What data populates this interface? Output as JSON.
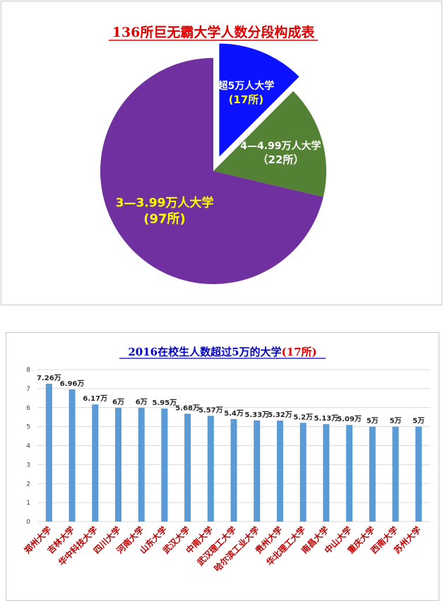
{
  "pie_chart": {
    "title": "136所巨无霸大学人数分段构成表",
    "title_color": "#e00000",
    "slices": [
      {
        "label": "超5万人大学",
        "count_label": "(17所)",
        "value": 17,
        "color": "#0a12ff",
        "label_color": "#ffffff",
        "count_color": "#ffff00",
        "exploded": true
      },
      {
        "label": "4—4.99万人大学",
        "count_label": "（22所）",
        "value": 22,
        "color": "#548235",
        "label_color": "#ffffff",
        "count_color": "#ffffff",
        "exploded": false
      },
      {
        "label": "3—3.99万人大学",
        "count_label": "(97所)",
        "value": 97,
        "color": "#7030a0",
        "label_color": "#ffff00",
        "count_color": "#ffff00",
        "exploded": false
      }
    ]
  },
  "chart_data": [
    {
      "type": "pie",
      "title": "136所巨无霸大学人数分段构成表",
      "categories": [
        "超5万人大学",
        "4—4.99万人大学",
        "3—3.99万人大学"
      ],
      "values": [
        17,
        22,
        97
      ]
    },
    {
      "type": "bar",
      "title": "2016在校生人数超过5万的大学(17所)",
      "categories": [
        "郑州大学",
        "吉林大学",
        "华中科技大学",
        "四川大学",
        "河南大学",
        "山东大学",
        "武汉大学",
        "中南大学",
        "武汉理工大学",
        "哈尔滨工业大学",
        "贵州大学",
        "华北理工大学",
        "南昌大学",
        "中山大学",
        "重庆大学",
        "西南大学",
        "苏州大学"
      ],
      "values": [
        7.26,
        6.96,
        6.17,
        6,
        6,
        5.95,
        5.68,
        5.57,
        5.4,
        5.33,
        5.32,
        5.2,
        5.13,
        5.09,
        5,
        5,
        5
      ],
      "data_labels": [
        "7.26万",
        "6.96万",
        "6.17万",
        "6万",
        "6万",
        "5.95万",
        "5.68万",
        "5.57万",
        "5.4万",
        "5.33万",
        "5.32万",
        "5.2万",
        "5.13万",
        "5.09万",
        "5万",
        "5万",
        "5万"
      ],
      "ylim": [
        0,
        8
      ],
      "yticks": [
        "0",
        "1",
        "2",
        "3",
        "4",
        "5",
        "6",
        "7",
        "8"
      ],
      "grid": true,
      "bar_color": "#5b9bd5",
      "xtick_color": "#c00000"
    }
  ],
  "bar_chart": {
    "title_main": "2016在校生人数超过5万的大学",
    "title_suffix": "(17所)",
    "title_color": "#0000cc",
    "title_suffix_color": "#e00000"
  }
}
